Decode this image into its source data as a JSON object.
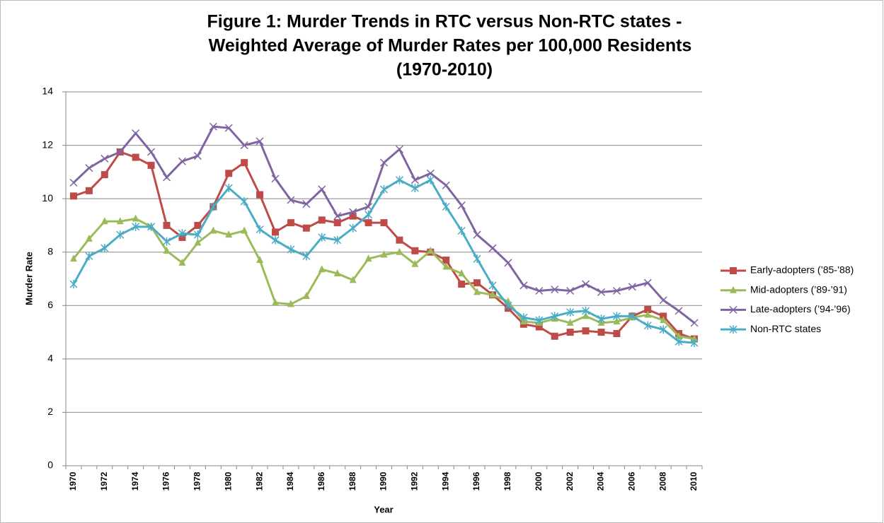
{
  "chart_data": {
    "type": "line",
    "title": [
      "Figure 1: Murder Trends in RTC versus Non-RTC states -",
      "Weighted Average of Murder Rates per 100,000 Residents",
      "(1970-2010)"
    ],
    "x_label": "Year",
    "y_label": "Murder Rate",
    "categories": [
      "1970",
      null,
      "1972",
      null,
      "1974",
      null,
      "1976",
      null,
      "1978",
      null,
      "1980",
      null,
      "1982",
      null,
      "1984",
      null,
      "1986",
      null,
      "1988",
      null,
      "1990",
      null,
      "1992",
      null,
      "1994",
      null,
      "1996",
      null,
      "1998",
      null,
      "2000",
      null,
      "2002",
      null,
      "2004",
      null,
      "2006",
      null,
      "2008",
      null,
      "2010"
    ],
    "ylim": [
      0,
      14
    ],
    "yticks": [
      0,
      2,
      4,
      6,
      8,
      10,
      12,
      14
    ],
    "grid": true,
    "legend": "right",
    "series": [
      {
        "name": "Early-adopters (’85-’88)",
        "color": "#be4b48",
        "marker": "square",
        "values": [
          10.1,
          10.3,
          10.9,
          11.75,
          11.55,
          11.25,
          9.0,
          8.55,
          9.0,
          9.7,
          10.95,
          11.35,
          10.15,
          8.75,
          9.1,
          8.9,
          9.2,
          9.1,
          9.35,
          9.1,
          9.1,
          8.45,
          8.05,
          8.0,
          7.7,
          6.8,
          6.85,
          6.4,
          5.9,
          5.3,
          5.2,
          4.85,
          5.0,
          5.05,
          5.0,
          4.95,
          5.6,
          5.85,
          5.6,
          4.95,
          4.75
        ]
      },
      {
        "name": "Mid-adopters (’89-’91)",
        "color": "#9bbb59",
        "marker": "triangle",
        "values": [
          7.75,
          8.5,
          9.15,
          9.15,
          9.25,
          8.95,
          8.05,
          7.6,
          8.35,
          8.8,
          8.65,
          8.8,
          7.7,
          6.1,
          6.05,
          6.35,
          7.35,
          7.2,
          6.95,
          7.75,
          7.9,
          8.0,
          7.55,
          8.05,
          7.45,
          7.2,
          6.5,
          6.4,
          6.15,
          5.4,
          5.35,
          5.5,
          5.35,
          5.6,
          5.35,
          5.4,
          5.55,
          5.65,
          5.45,
          4.85,
          4.75
        ]
      },
      {
        "name": "Late-adopters (’94-’96)",
        "color": "#8064a2",
        "marker": "x",
        "values": [
          10.6,
          11.15,
          11.5,
          11.75,
          12.45,
          11.75,
          10.8,
          11.4,
          11.6,
          12.7,
          12.65,
          12.0,
          12.15,
          10.75,
          9.95,
          9.8,
          10.35,
          9.35,
          9.5,
          9.7,
          11.35,
          11.85,
          10.7,
          10.95,
          10.5,
          9.75,
          8.65,
          8.15,
          7.6,
          6.75,
          6.55,
          6.6,
          6.55,
          6.8,
          6.5,
          6.55,
          6.7,
          6.85,
          6.2,
          5.8,
          5.35
        ]
      },
      {
        "name": "Non-RTC states",
        "color": "#4bacc6",
        "marker": "star",
        "values": [
          6.8,
          7.85,
          8.15,
          8.65,
          8.95,
          8.95,
          8.4,
          8.7,
          8.65,
          9.7,
          10.4,
          9.9,
          8.85,
          8.45,
          8.1,
          7.85,
          8.55,
          8.45,
          8.9,
          9.4,
          10.35,
          10.7,
          10.4,
          10.7,
          9.7,
          8.8,
          7.75,
          6.75,
          6.0,
          5.55,
          5.45,
          5.6,
          5.75,
          5.8,
          5.5,
          5.6,
          5.6,
          5.25,
          5.1,
          4.65,
          4.6
        ]
      }
    ]
  }
}
